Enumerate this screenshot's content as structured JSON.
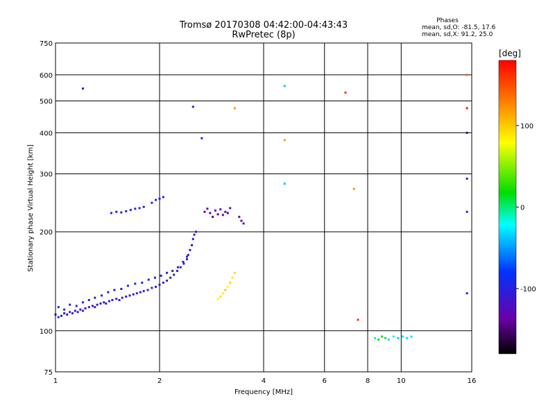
{
  "chart_data": {
    "type": "scatter",
    "title": "Tromsø 20170308 04:42:00-04:43:43",
    "subtitle": "RwPretec (8p)",
    "xlabel": "Frequency [MHz]",
    "ylabel": "Stationary phase Virtual Height [km]",
    "x_scale": "log2",
    "y_scale": "log",
    "xlim": [
      1,
      16
    ],
    "ylim": [
      75,
      750
    ],
    "x_ticks": [
      1,
      2,
      4,
      6,
      8,
      10,
      16
    ],
    "y_ticks": [
      75,
      100,
      200,
      300,
      400,
      500,
      600,
      750
    ],
    "grid": true,
    "phases_box": {
      "heading": "Phases",
      "line_o": "mean, sd,O: -81.5, 17.6",
      "line_x": "mean, sd,X:  91.2, 25.0"
    },
    "colorbar": {
      "label": "[deg]",
      "ticks": [
        100,
        0,
        -100
      ],
      "range": [
        -180,
        180
      ]
    },
    "series": [
      {
        "x": [
          1.0,
          1.02,
          1.04,
          1.06,
          1.08,
          1.1,
          1.12,
          1.14,
          1.16,
          1.18,
          1.2,
          1.22,
          1.25,
          1.28,
          1.3,
          1.32,
          1.35,
          1.38,
          1.4,
          1.43,
          1.46,
          1.5,
          1.53,
          1.56,
          1.6,
          1.64,
          1.68,
          1.72,
          1.76,
          1.8,
          1.85,
          1.9,
          1.95,
          2.0,
          2.05,
          2.1,
          2.15,
          2.2,
          2.25,
          2.3,
          2.35,
          2.4,
          2.42,
          2.45,
          2.48,
          2.5,
          2.52,
          2.55
        ],
        "y": [
          112,
          110,
          111,
          113,
          112,
          114,
          113,
          115,
          114,
          116,
          115,
          117,
          118,
          119,
          118,
          120,
          121,
          122,
          121,
          123,
          124,
          125,
          124,
          126,
          127,
          128,
          129,
          130,
          131,
          132,
          133,
          135,
          136,
          138,
          140,
          142,
          145,
          148,
          152,
          156,
          160,
          165,
          170,
          176,
          182,
          190,
          196,
          200
        ],
        "phase": [
          -105,
          -110,
          -100,
          -108,
          -112,
          -104,
          -109,
          -101,
          -107,
          -111,
          -103,
          -106,
          -110,
          -104,
          -108,
          -112,
          -103,
          -107,
          -109,
          -104,
          -106,
          -110,
          -102,
          -108,
          -105,
          -109,
          -103,
          -107,
          -111,
          -104,
          -106,
          -110,
          -102,
          -108,
          -105,
          -109,
          -103,
          -107,
          -111,
          -104,
          -106,
          -110,
          -102,
          -108,
          -105,
          -109,
          -103,
          -107
        ]
      },
      {
        "x": [
          1.02,
          1.06,
          1.1,
          1.15,
          1.2,
          1.25,
          1.3,
          1.36,
          1.42,
          1.48,
          1.55,
          1.62,
          1.7,
          1.78,
          1.86,
          1.94,
          2.02,
          2.1,
          2.18,
          2.26,
          2.34,
          2.4
        ],
        "y": [
          118,
          116,
          120,
          119,
          122,
          124,
          126,
          128,
          131,
          133,
          134,
          137,
          139,
          140,
          143,
          145,
          147,
          150,
          152,
          156,
          162,
          168
        ],
        "phase": [
          -98,
          -102,
          -96,
          -100,
          -104,
          -97,
          -101,
          -99,
          -103,
          -96,
          -100,
          -98,
          -102,
          -97,
          -101,
          -99,
          -103,
          -96,
          -100,
          -98,
          -102,
          -97
        ]
      },
      {
        "x": [
          1.45,
          1.5,
          1.55,
          1.6,
          1.65,
          1.7,
          1.75,
          1.8,
          1.9,
          1.95,
          2.0,
          2.05
        ],
        "y": [
          228,
          230,
          229,
          231,
          233,
          235,
          236,
          238,
          245,
          250,
          252,
          255
        ],
        "phase": [
          -95,
          -98,
          -96,
          -100,
          -97,
          -99,
          -95,
          -98,
          -96,
          -100,
          -97,
          -99
        ]
      },
      {
        "x": [
          2.7,
          2.75,
          2.8,
          2.85,
          2.9,
          2.95,
          3.0,
          3.05,
          3.1,
          3.15,
          3.2,
          3.4,
          3.45,
          3.5
        ],
        "y": [
          230,
          235,
          228,
          222,
          232,
          226,
          234,
          225,
          230,
          228,
          236,
          222,
          216,
          212
        ],
        "phase": [
          -130,
          -140,
          -125,
          -150,
          -135,
          -145,
          -128,
          -138,
          -132,
          -142,
          -127,
          -135,
          -140,
          -130
        ]
      },
      {
        "x": [
          2.95,
          3.0,
          3.05,
          3.1,
          3.15,
          3.2,
          3.25,
          3.3
        ],
        "y": [
          125,
          127,
          130,
          133,
          136,
          140,
          145,
          150
        ],
        "phase": [
          75,
          90,
          85,
          100,
          80,
          95,
          88,
          92
        ]
      },
      {
        "x": [
          8.4,
          8.6,
          8.8,
          9.0,
          9.2,
          9.5,
          9.8,
          10.1,
          10.4,
          10.7
        ],
        "y": [
          95,
          94,
          96,
          95,
          94,
          96,
          95,
          96,
          95,
          96
        ],
        "phase": [
          -10,
          25,
          15,
          5,
          -30,
          -25,
          -35,
          -28,
          -32,
          -30
        ]
      },
      {
        "x": [
          1.2,
          2.5,
          2.65,
          3.3,
          4.6,
          4.6,
          4.6,
          6.9,
          7.3,
          7.5,
          15.5,
          15.5,
          15.5,
          15.5,
          15.5,
          15.5
        ],
        "y": [
          545,
          480,
          385,
          475,
          555,
          380,
          280,
          530,
          270,
          108,
          600,
          475,
          400,
          290,
          230,
          130
        ],
        "phase": [
          -100,
          -100,
          -110,
          120,
          -40,
          120,
          -40,
          160,
          120,
          160,
          140,
          170,
          -150,
          -110,
          -100,
          -100
        ]
      }
    ]
  }
}
